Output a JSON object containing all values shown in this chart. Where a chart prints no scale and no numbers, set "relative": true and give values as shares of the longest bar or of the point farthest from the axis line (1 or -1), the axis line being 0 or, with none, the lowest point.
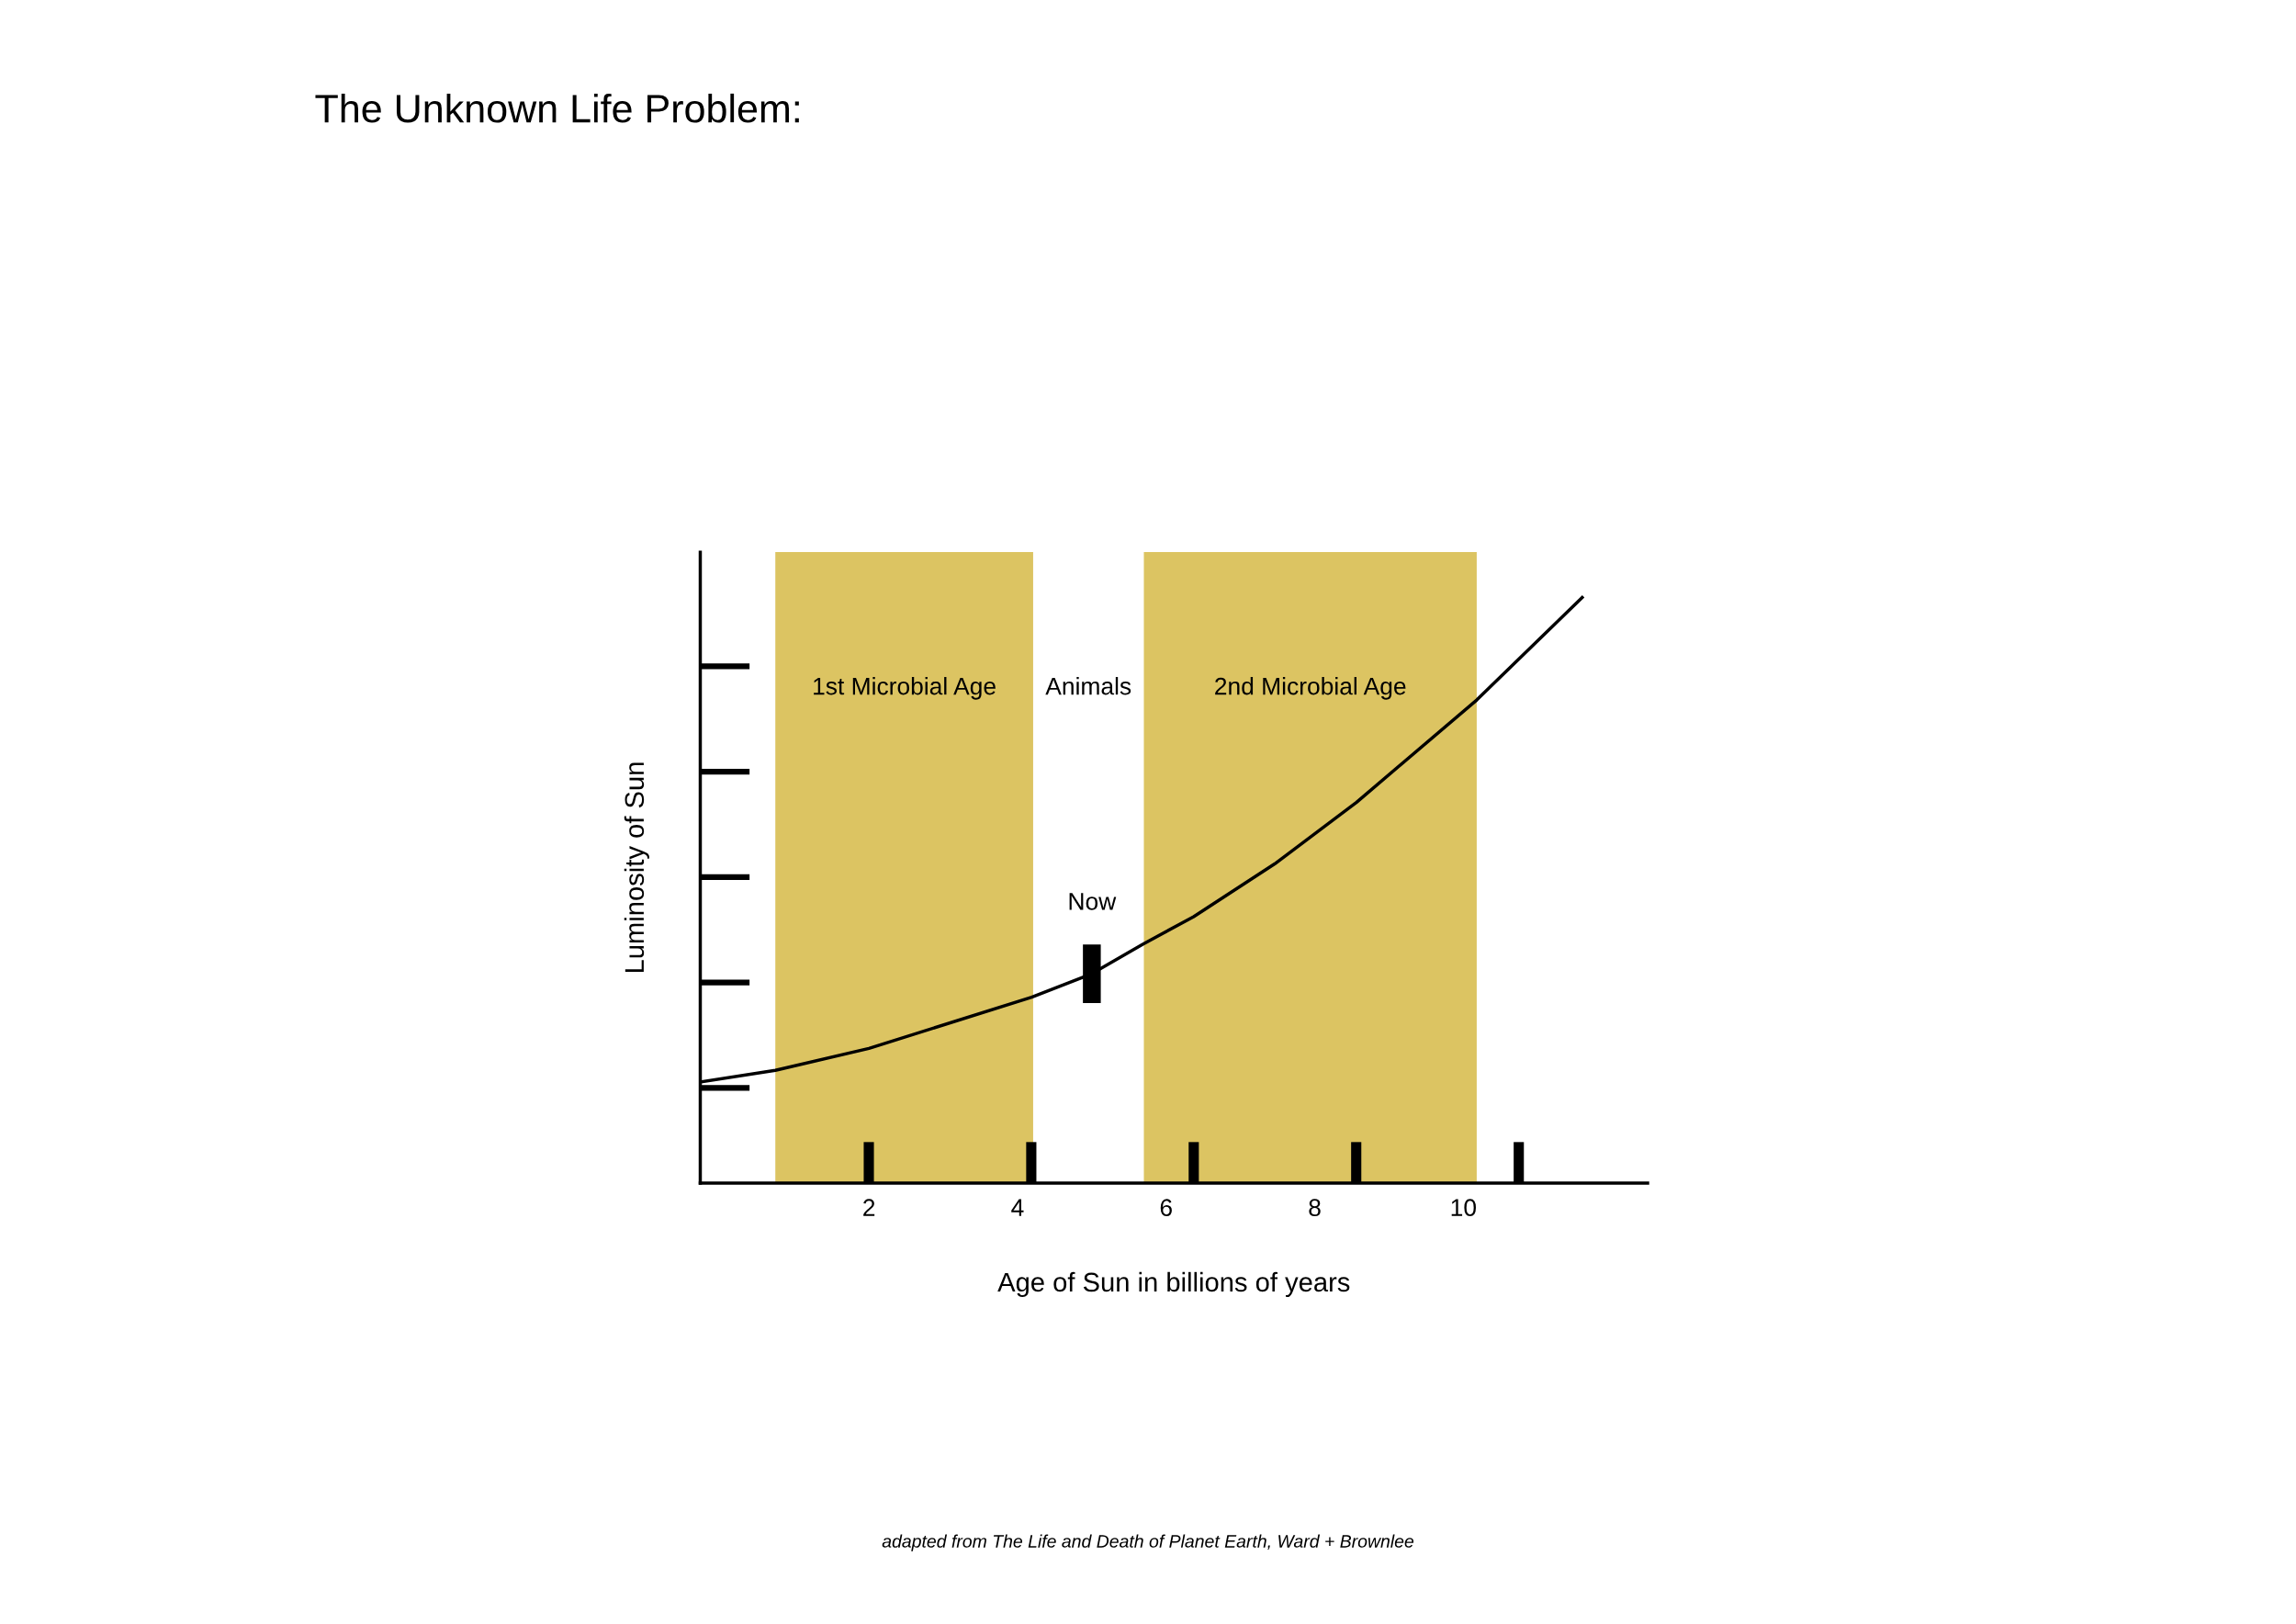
{
  "chart_data": {
    "type": "line",
    "title": "The Unknown Life Problem:",
    "xlabel": "Age of Sun in billions of years",
    "ylabel": "Luminosity of Sun",
    "relative": true,
    "x": [
      -0.27,
      0.74,
      2.0,
      4.19,
      5.0,
      5.68,
      6.37,
      7.46,
      8.56,
      10.18,
      11.6
    ],
    "series": [
      {
        "color": "#000000",
        "values": [
          0.1725,
          0.1925,
          0.23,
          0.3175,
          0.3575,
          0.4075,
          0.455,
          0.545,
          0.65,
          0.825,
          1.0
        ]
      }
    ],
    "xlim": [
      -0.27,
      12.48
    ],
    "xticks": [
      2,
      4,
      6,
      8,
      10
    ],
    "bands": [
      {
        "axis": "x",
        "from": 0.74,
        "to": 4.21,
        "label": "1st Microbial Age",
        "color": "#dcc462"
      },
      {
        "axis": "x",
        "from": 5.7,
        "to": 10.18,
        "label": "2nd Microbial Age",
        "color": "#dcc462"
      }
    ],
    "annotations": [
      "Animals",
      {
        "text": "Now",
        "x": 5.0,
        "y": 0.3575
      },
      "adapted from The Life and Death of Planet Earth, Ward + Brownlee"
    ],
    "grid": false,
    "marker": "none",
    "line_style": "solid"
  }
}
